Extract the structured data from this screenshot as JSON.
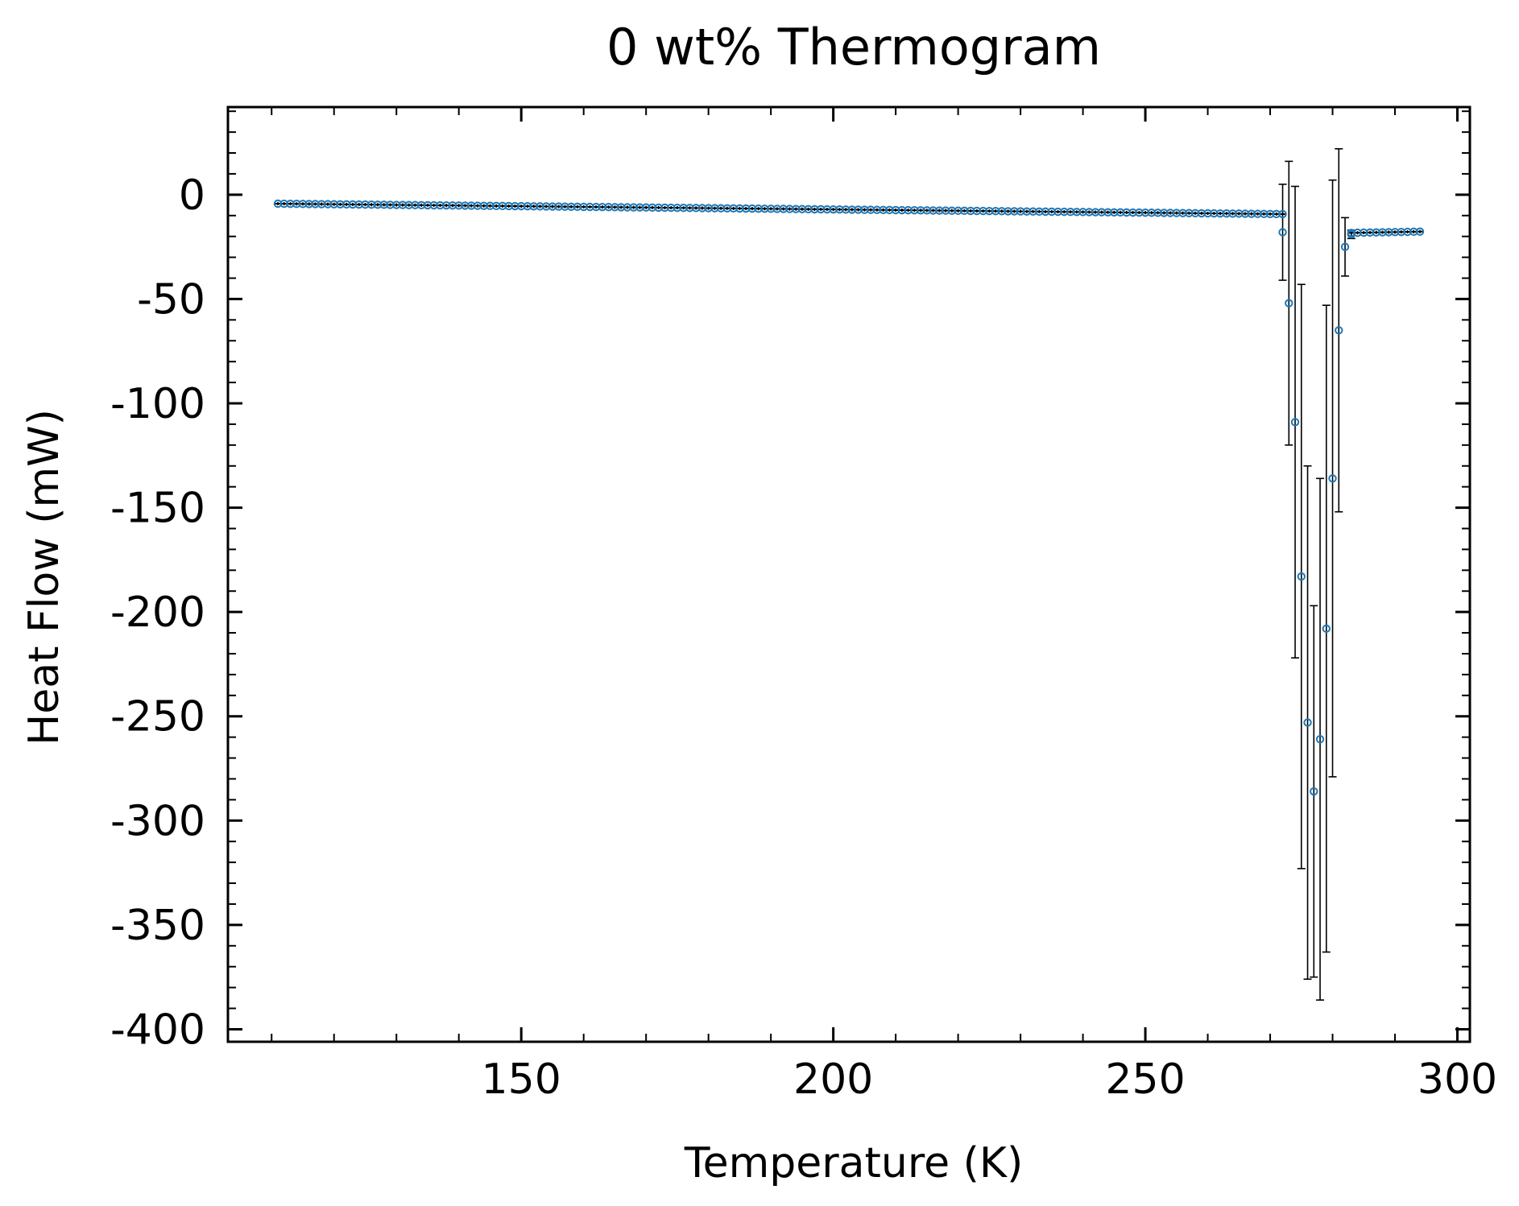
{
  "chart_data": {
    "type": "scatter",
    "title": "0 wt% Thermogram",
    "xlabel": "Temperature (K)",
    "ylabel": "Heat Flow (mW)",
    "xlim": [
      103,
      302
    ],
    "ylim": [
      -406,
      42
    ],
    "xticks": [
      150,
      200,
      250,
      300
    ],
    "yticks": [
      0,
      -50,
      -100,
      -150,
      -200,
      -250,
      -300,
      -350,
      -400
    ],
    "xtick_labels": [
      "150",
      "200",
      "250",
      "300"
    ],
    "ytick_labels": [
      "0",
      "-50",
      "-100",
      "-150",
      "-200",
      "-250",
      "-300",
      "-350",
      "-400"
    ],
    "x_minor_step": 10,
    "y_minor_step": 10,
    "grid": false,
    "marker_color": "#1f77b4",
    "errorbar_color": "#000000",
    "baseline_low": {
      "x_start": 111,
      "x_end": 272,
      "y_start": -4.3,
      "y_end": -9.3
    },
    "baseline_high": {
      "x_start": 283,
      "x_end": 294,
      "y_start": -18.3,
      "y_end": -17.7
    },
    "transition": [
      {
        "x": 272,
        "y": -18,
        "yerr": 23
      },
      {
        "x": 273,
        "y": -52,
        "yerr": 68
      },
      {
        "x": 274,
        "y": -109,
        "yerr": 113
      },
      {
        "x": 275,
        "y": -183,
        "yerr": 140
      },
      {
        "x": 276,
        "y": -253,
        "yerr": 123
      },
      {
        "x": 277,
        "y": -286,
        "yerr": 89
      },
      {
        "x": 278,
        "y": -261,
        "yerr": 125
      },
      {
        "x": 279,
        "y": -208,
        "yerr": 155
      },
      {
        "x": 280,
        "y": -136,
        "yerr": 143
      },
      {
        "x": 281,
        "y": -65,
        "yerr": 87
      },
      {
        "x": 282,
        "y": -25,
        "yerr": 14
      },
      {
        "x": 283,
        "y": -19,
        "yerr": 2
      }
    ]
  }
}
